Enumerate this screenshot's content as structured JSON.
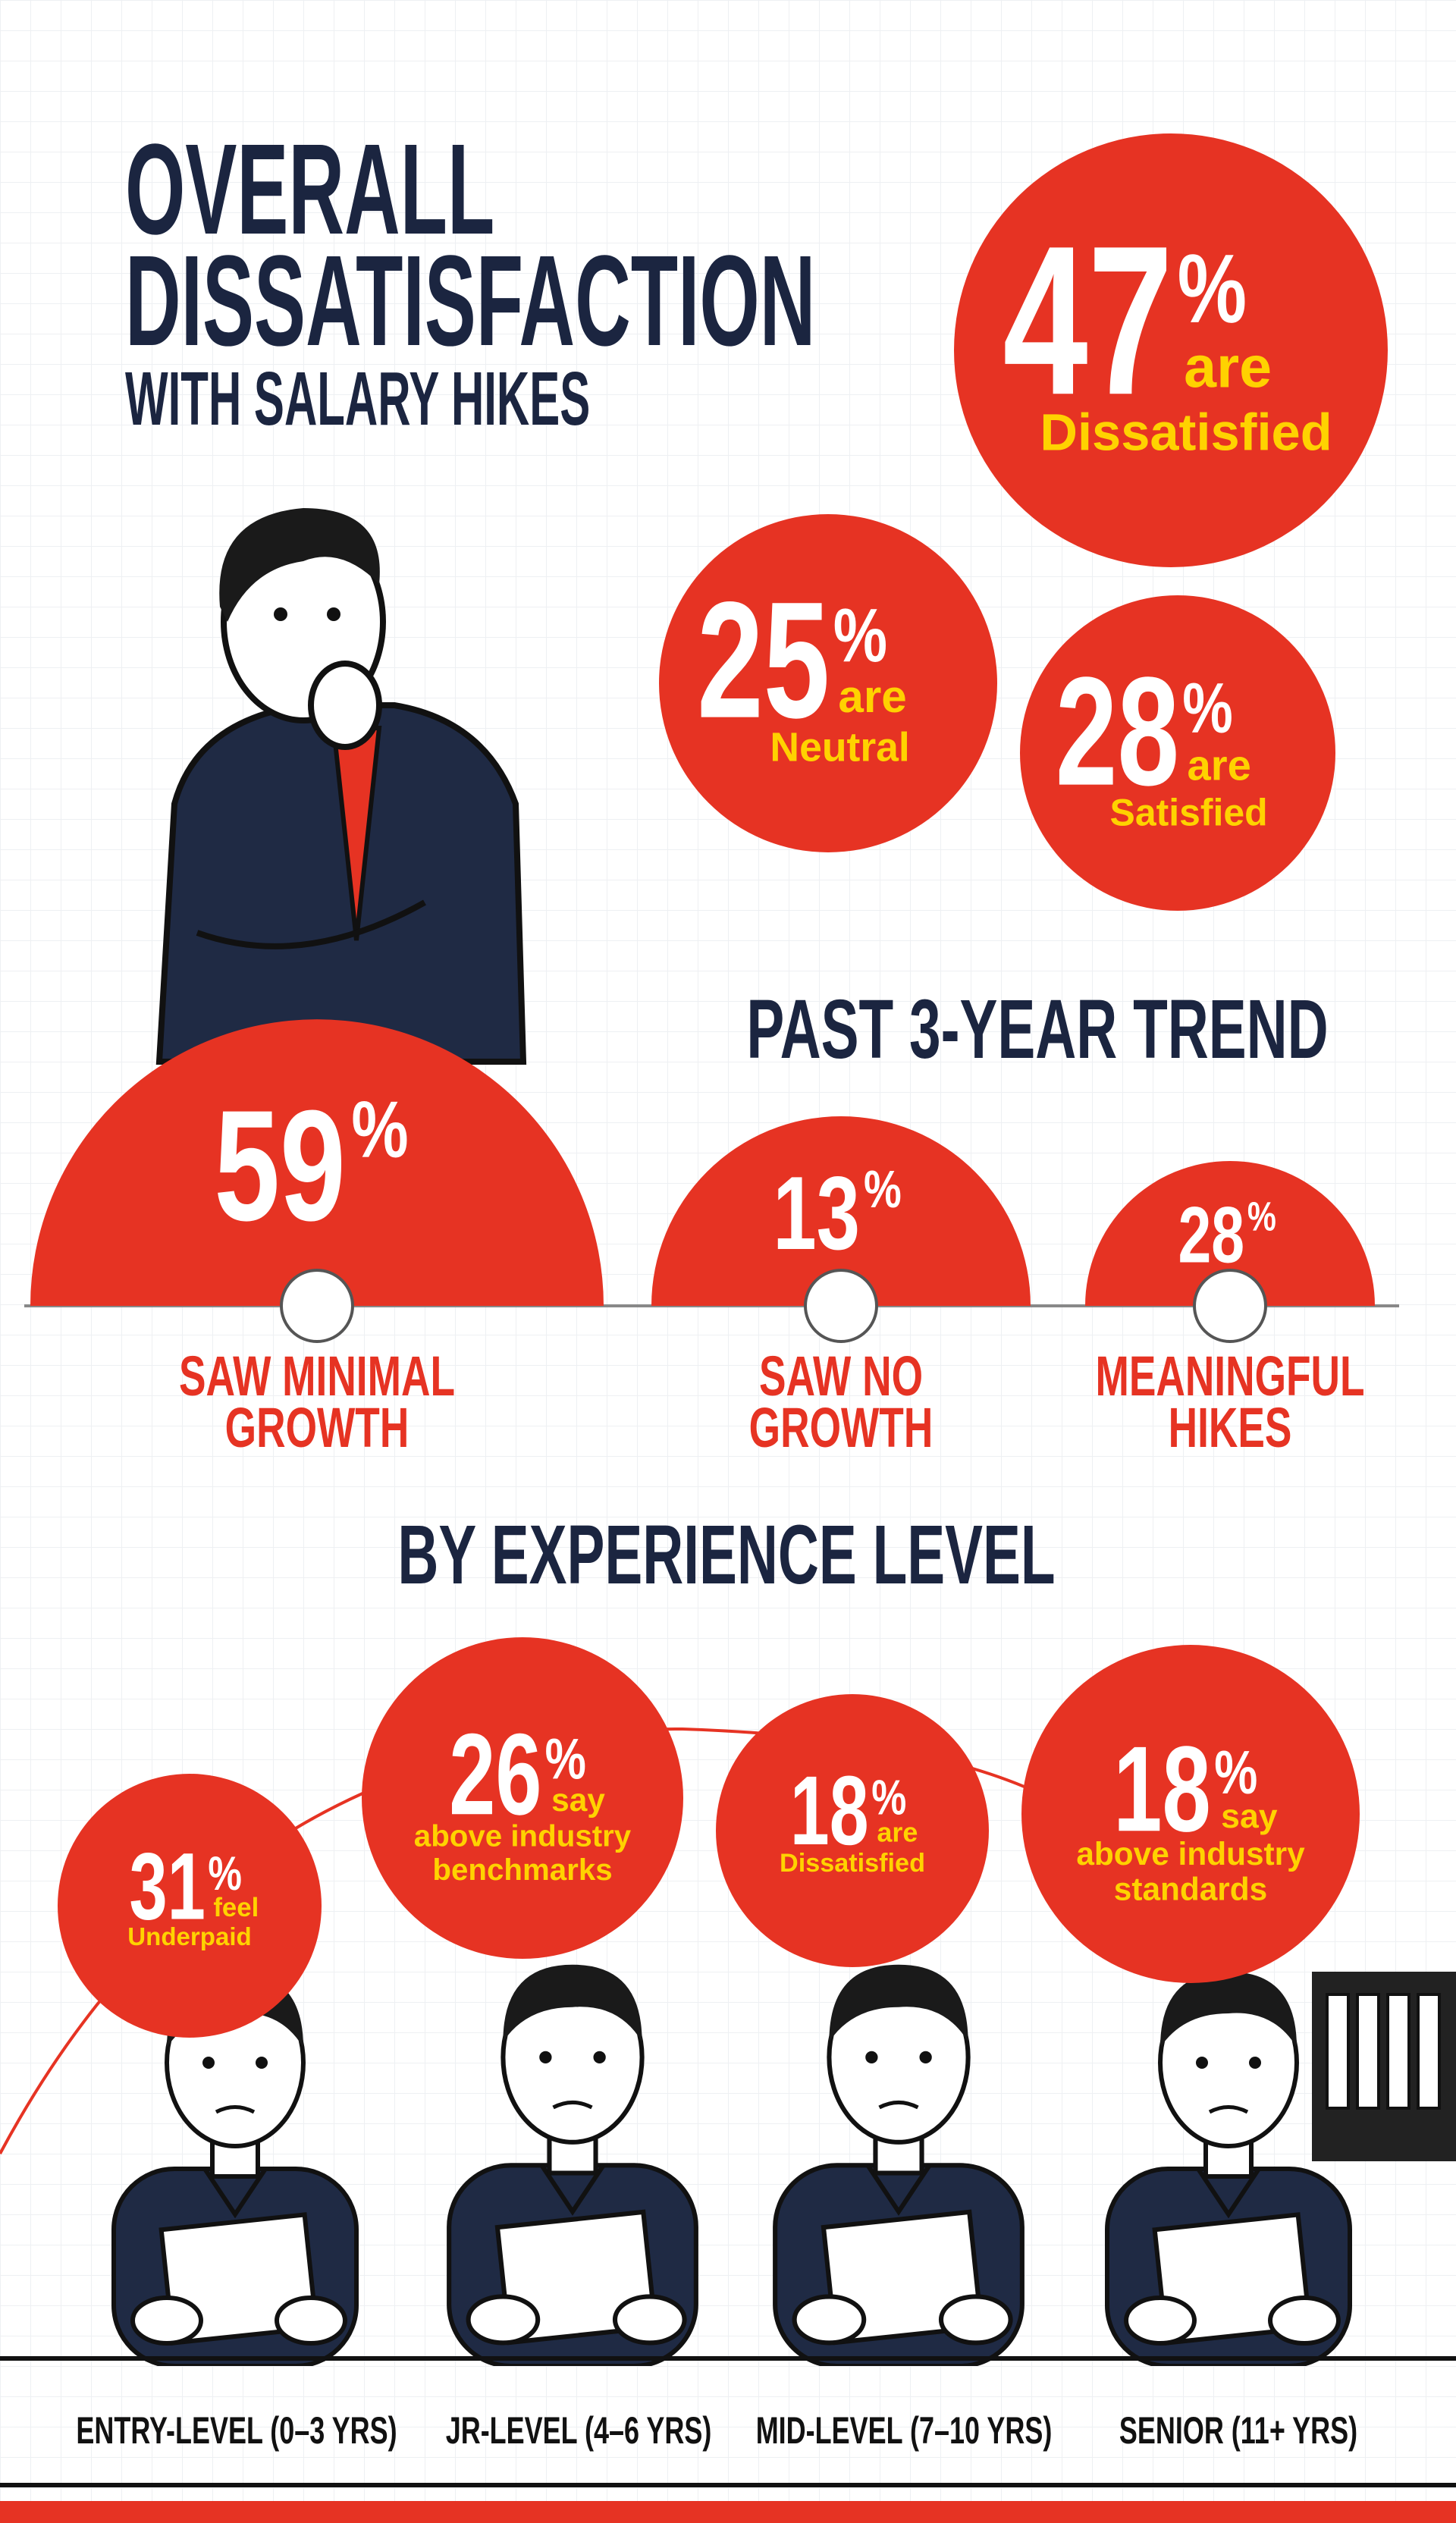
{
  "header": {
    "title": [
      "OVERALL",
      "DISSATISFACTION"
    ],
    "subtitle": "WITH SALARY HIKES"
  },
  "overall": [
    {
      "value": 47,
      "unit": "%",
      "verb": "are",
      "label": "Dissatisfied"
    },
    {
      "value": 25,
      "unit": "%",
      "verb": "are",
      "label": "Neutral"
    },
    {
      "value": 28,
      "unit": "%",
      "verb": "are",
      "label": "Satisfied"
    }
  ],
  "trend": {
    "title": "PAST 3-YEAR TREND",
    "items": [
      {
        "value": 59,
        "unit": "%",
        "label": [
          "SAW MINIMAL",
          "GROWTH"
        ]
      },
      {
        "value": 13,
        "unit": "%",
        "label": [
          "SAW NO",
          "GROWTH"
        ]
      },
      {
        "value": 28,
        "unit": "%",
        "label": [
          "MEANINGFUL",
          "HIKES"
        ]
      }
    ]
  },
  "experience": {
    "title": "BY EXPERIENCE LEVEL",
    "items": [
      {
        "value": 31,
        "unit": "%",
        "verb": "feel",
        "label": [
          "Underpaid"
        ],
        "level": "ENTRY-LEVEL (0–3 YRS)"
      },
      {
        "value": 26,
        "unit": "%",
        "verb": "say",
        "label": [
          "above industry",
          "benchmarks"
        ],
        "level": "JR-LEVEL (4–6 YRS)"
      },
      {
        "value": 18,
        "unit": "%",
        "verb": "are",
        "label": [
          "Dissatisfied"
        ],
        "level": "MID-LEVEL (7–10 YRS)"
      },
      {
        "value": 18,
        "unit": "%",
        "verb": "say",
        "label": [
          "above industry",
          "standards"
        ],
        "level": "SENIOR (11+ YRS)"
      }
    ]
  }
}
